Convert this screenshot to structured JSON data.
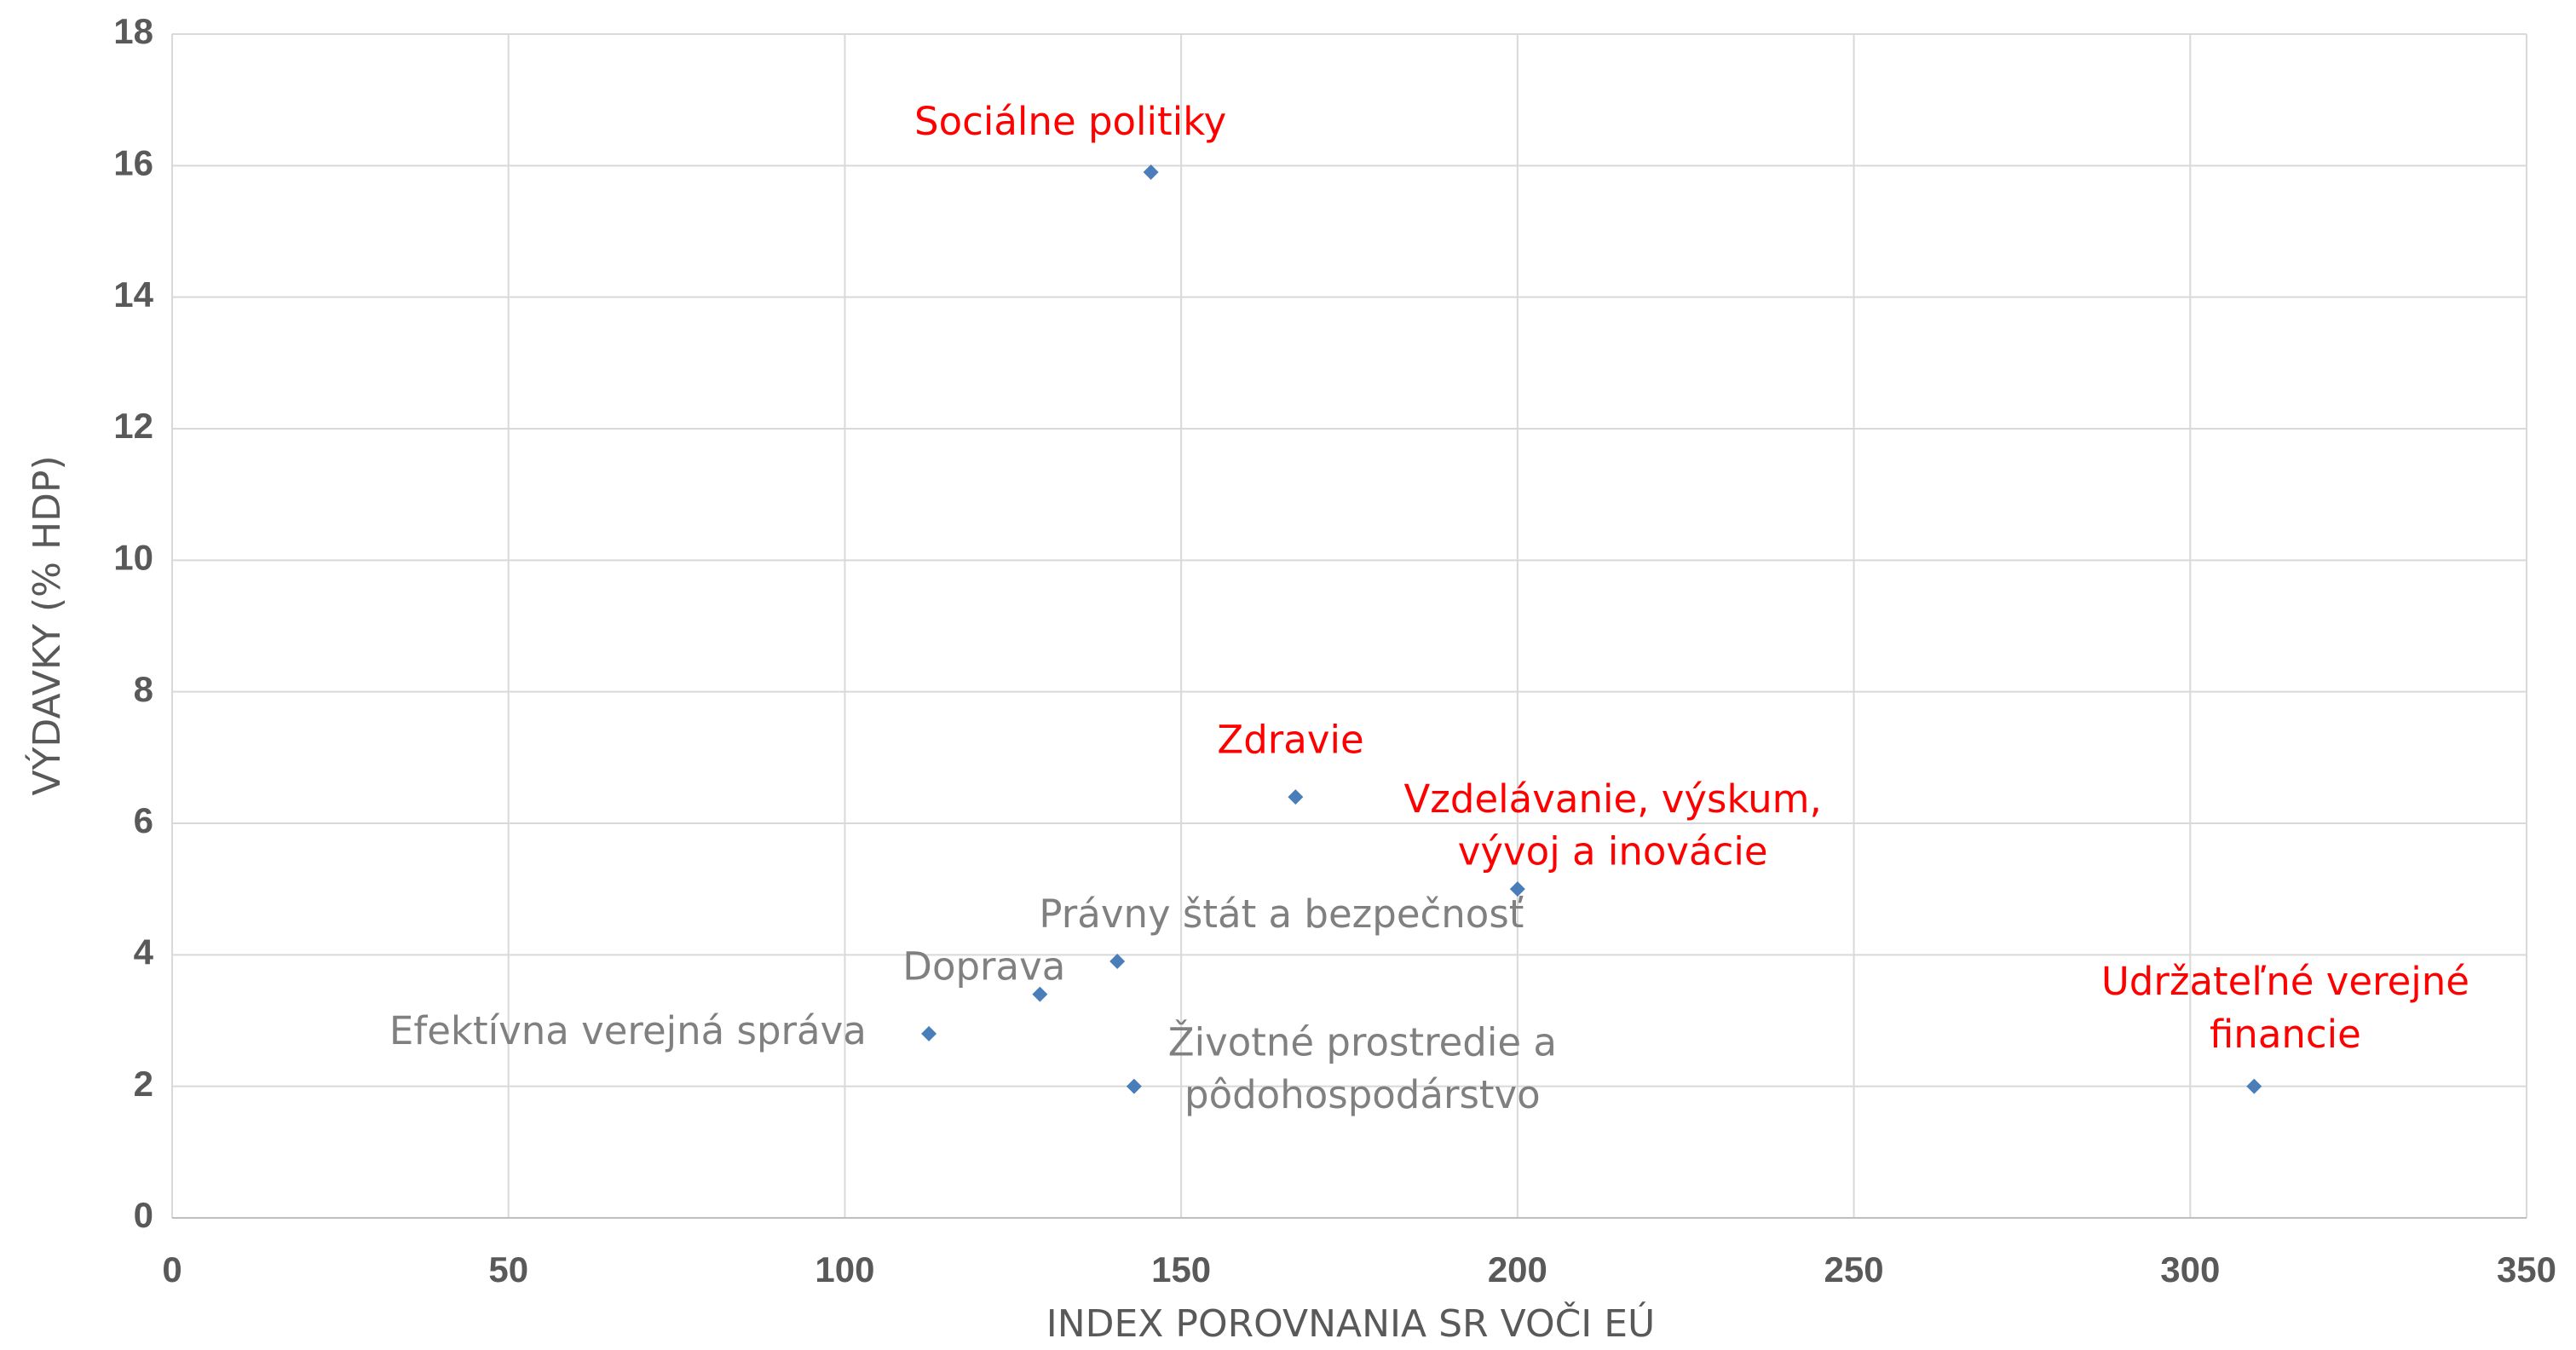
{
  "chart_data": {
    "type": "scatter",
    "x_label": "INDEX POROVNANIA SR VOČI EÚ",
    "y_label": "VÝDAVKY (% HDP)",
    "xlim": [
      0,
      350
    ],
    "xticks": [
      0,
      50,
      100,
      150,
      200,
      250,
      300,
      350
    ],
    "ylim": [
      0,
      18
    ],
    "yticks": [
      0,
      2,
      4,
      6,
      8,
      10,
      12,
      14,
      16,
      18
    ],
    "grid": true,
    "color": "#4a7ebb",
    "x": [
      145.5,
      167,
      200,
      140.5,
      129,
      112.5,
      143,
      309.5
    ],
    "values": [
      15.9,
      6.4,
      5.0,
      3.9,
      3.4,
      2.8,
      2.0,
      2.0
    ],
    "labels": [
      [
        "Sociálne politiky"
      ],
      [
        "Zdravie"
      ],
      [
        "Vzdelávanie, výskum,",
        "vývoj a inovácie"
      ],
      [
        "Právny štát a bezpečnosť"
      ],
      [
        "Doprava"
      ],
      [
        "Efektívna verejná správa"
      ],
      [
        "Životné prostredie a",
        "pôdohospodárstvo"
      ],
      [
        "Udržateľné verejné",
        "financie"
      ]
    ],
    "label_colors": [
      "#ff0000",
      "#ff0000",
      "#ff0000",
      "#808080",
      "#808080",
      "#808080",
      "#808080",
      "#ff0000"
    ]
  }
}
